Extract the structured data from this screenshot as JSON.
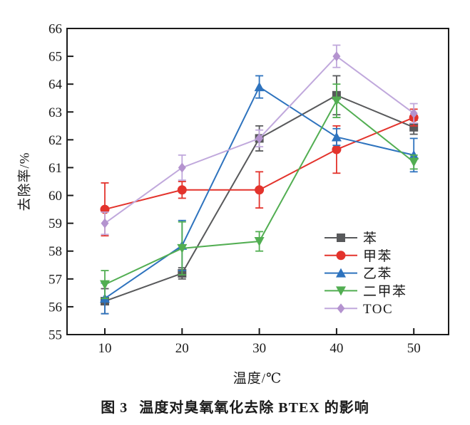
{
  "figure": {
    "caption_number": "图 3",
    "caption_text": "温度对臭氧氧化去除 BTEX 的影响"
  },
  "chart_data": {
    "type": "line",
    "x": [
      10,
      20,
      30,
      40,
      50
    ],
    "xticks": [
      10,
      20,
      30,
      40,
      50
    ],
    "yticks": [
      55,
      56,
      57,
      58,
      59,
      60,
      61,
      62,
      63,
      64,
      65,
      66
    ],
    "ylim": [
      55,
      66
    ],
    "xlabel": "温度/℃",
    "ylabel": "去除率/%",
    "grid": false,
    "legend_position": "lower-right-inside",
    "frame_color": "#1a1a1a",
    "series": [
      {
        "name": "苯",
        "marker": "square",
        "color": "#58595B",
        "values": [
          56.2,
          57.2,
          62.05,
          63.6,
          62.45
        ],
        "errors": [
          0.45,
          0.2,
          0.45,
          0.7,
          0.25
        ]
      },
      {
        "name": "甲苯",
        "marker": "circle",
        "color": "#E3332C",
        "values": [
          59.5,
          60.2,
          60.2,
          61.65,
          62.8
        ],
        "errors": [
          0.95,
          0.3,
          0.65,
          0.85,
          0.3
        ]
      },
      {
        "name": "乙苯",
        "marker": "triangle-up",
        "color": "#2E73BE",
        "values": [
          56.3,
          58.2,
          63.9,
          62.1,
          61.45
        ],
        "errors": [
          0.55,
          0.9,
          0.4,
          0.3,
          0.6
        ]
      },
      {
        "name": "二甲苯",
        "marker": "triangle-down",
        "color": "#52AE52",
        "values": [
          56.8,
          58.1,
          58.35,
          63.4,
          61.2
        ],
        "errors": [
          0.5,
          0.95,
          0.35,
          0.6,
          0.25
        ]
      },
      {
        "name": "TOC",
        "marker": "diamond",
        "color": "#C0A8DC",
        "marker_color": "#B493CF",
        "values": [
          59.0,
          61.0,
          62.05,
          65.0,
          62.95
        ],
        "errors": [
          0.4,
          0.45,
          0.3,
          0.4,
          0.35
        ]
      }
    ]
  }
}
